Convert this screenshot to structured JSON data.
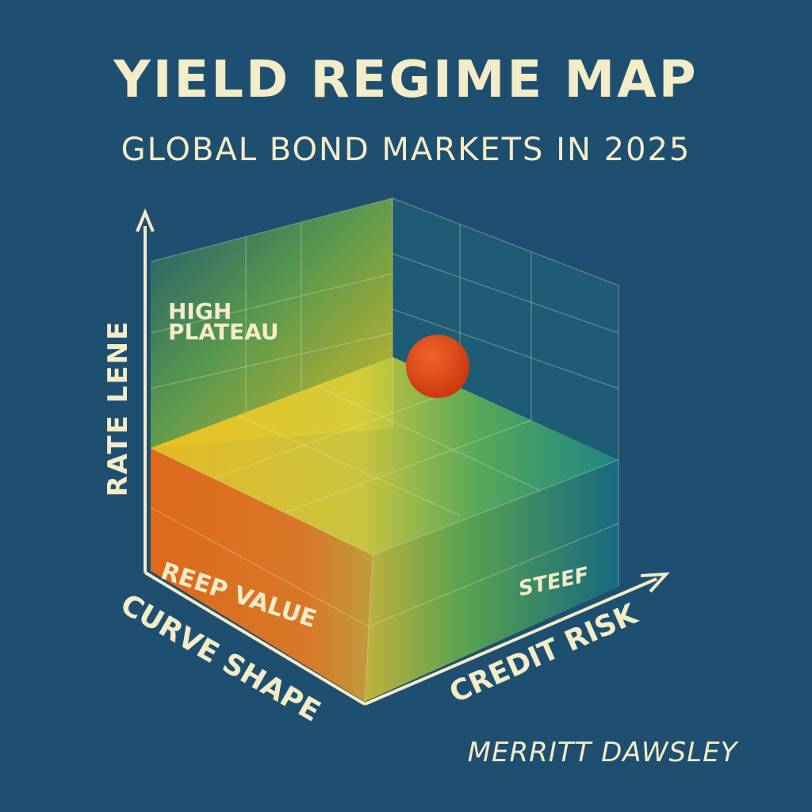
{
  "header": {
    "title": "YIELD REGIME MAP",
    "subtitle": "GLOBAL BOND MARKETS IN 2025"
  },
  "axes": {
    "vertical": "RATE LENE",
    "left": "CURVE SHAPE",
    "right": "CREDIT RISK"
  },
  "regions": {
    "high_plateau": [
      "HIGH",
      "PLATEAU"
    ],
    "reep_value": "REEP VALUE",
    "steef": "STEEF"
  },
  "author": "MERRITT DAWSLEY"
}
